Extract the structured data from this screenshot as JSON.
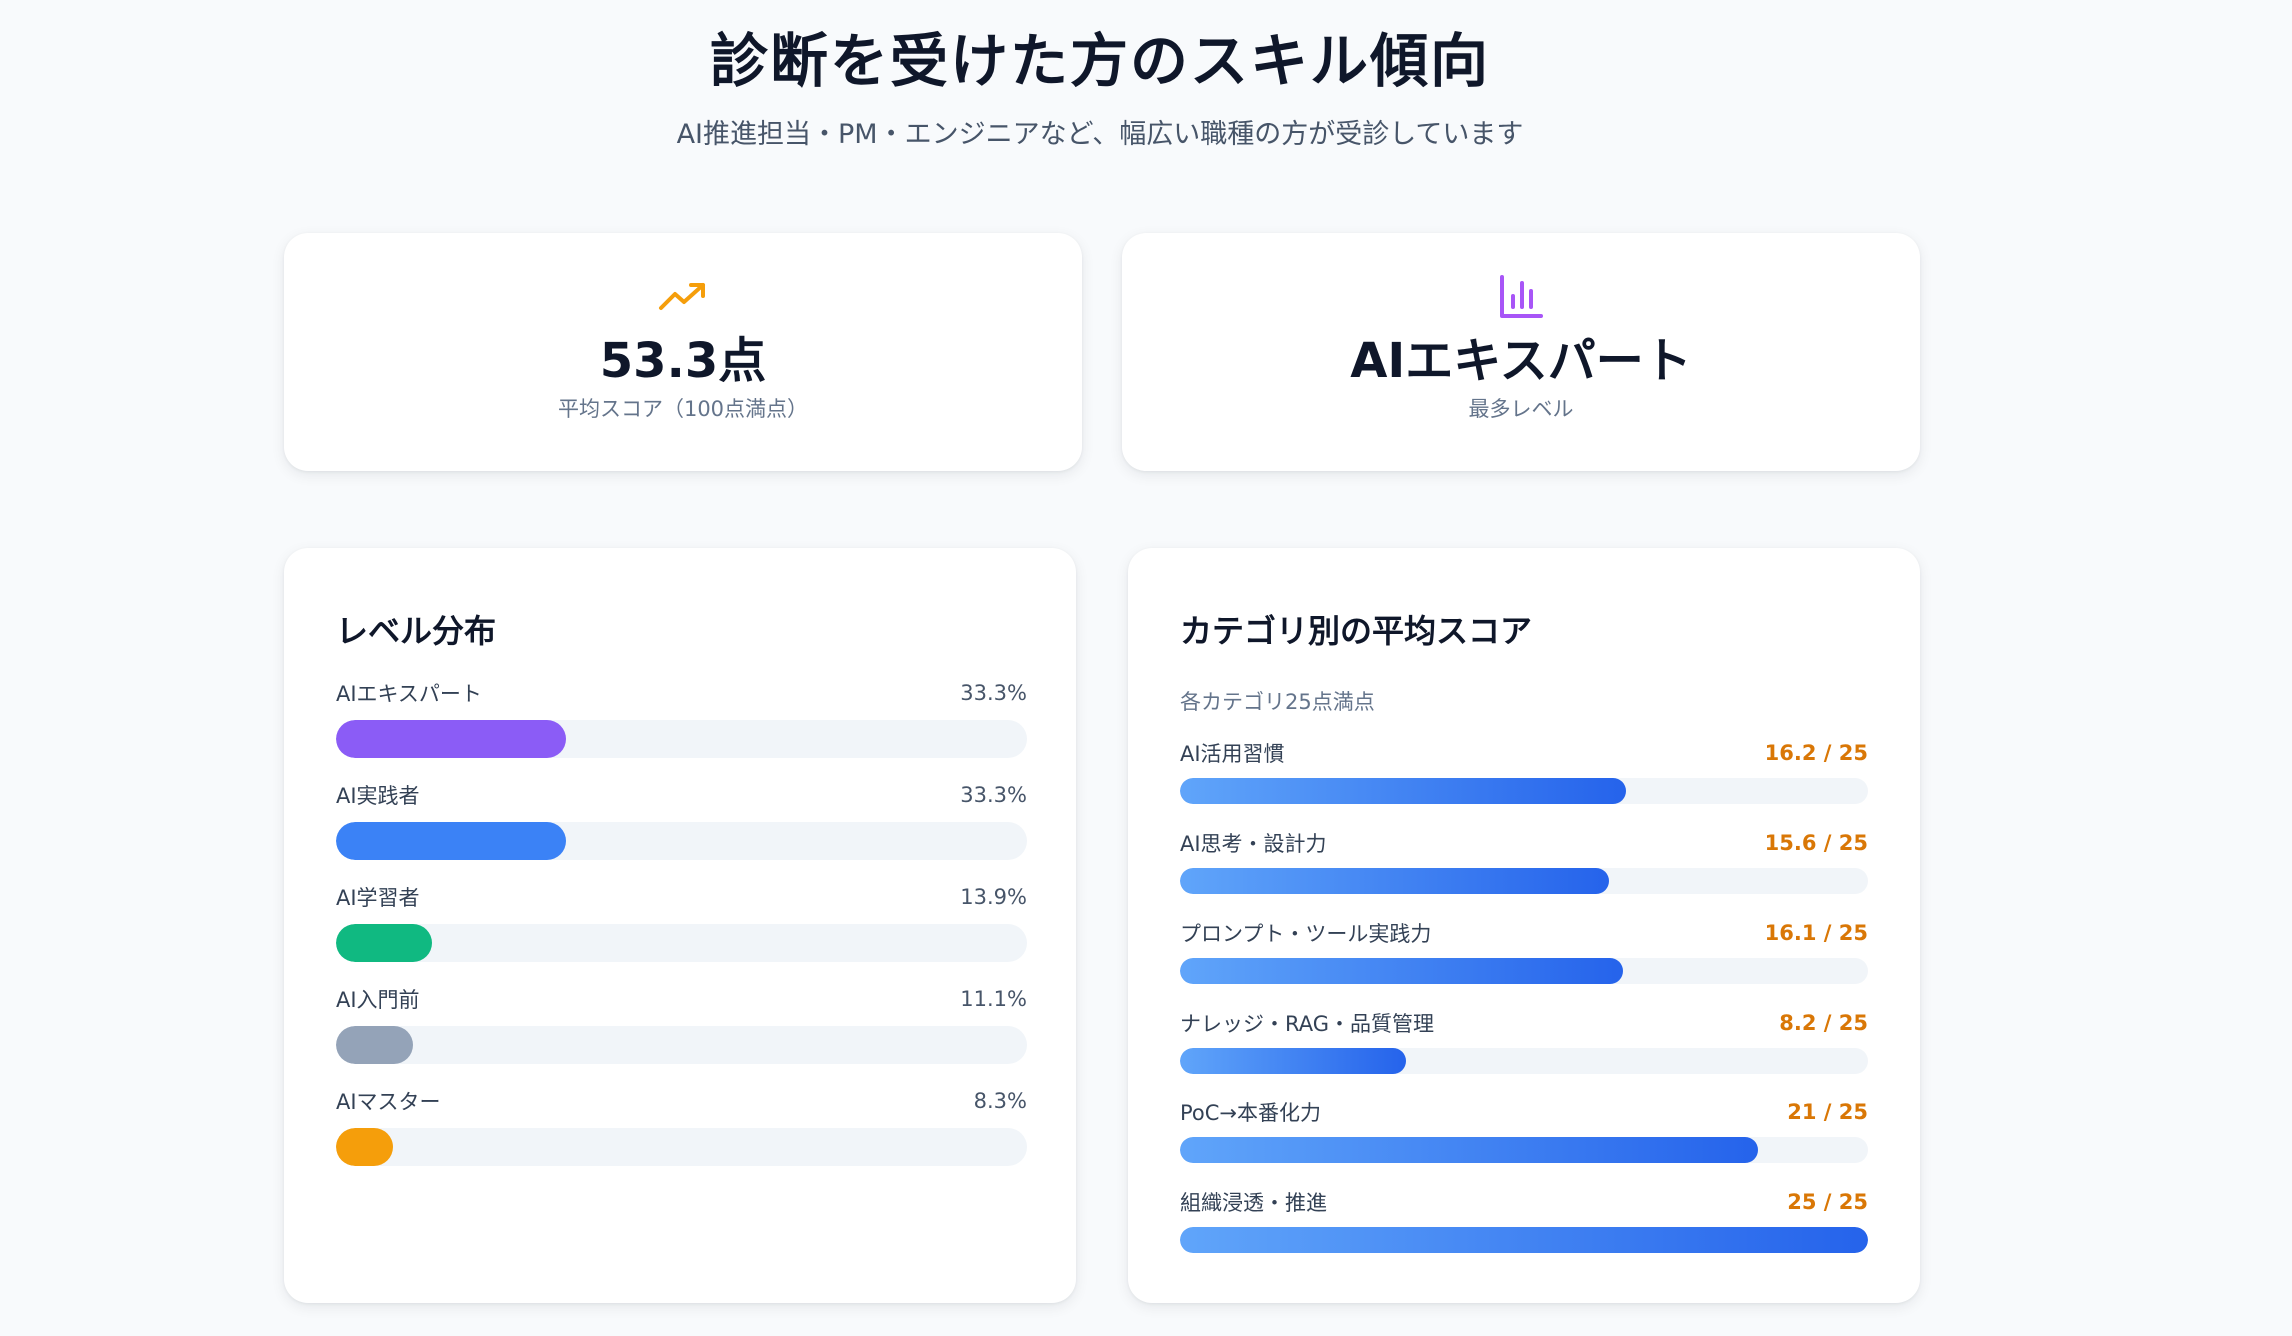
{
  "header": {
    "title": "診断を受けた方のスキル傾向",
    "subtitle": "AI推進担当・PM・エンジニアなど、幅広い職種の方が受診しています"
  },
  "stats": [
    {
      "icon": "trending-up-icon",
      "value": "53.3点",
      "label": "平均スコア（100点満点）",
      "color": "#f59e0b"
    },
    {
      "icon": "bar-chart-icon",
      "value": "AIエキスパート",
      "label": "最多レベル",
      "color": "#a855f7"
    }
  ],
  "level_distribution": {
    "title": "レベル分布",
    "items": [
      {
        "label": "AIエキスパート",
        "value": "33.3%",
        "percent": 33.3,
        "color": "#8b5cf6"
      },
      {
        "label": "AI実践者",
        "value": "33.3%",
        "percent": 33.3,
        "color": "#3b82f6"
      },
      {
        "label": "AI学習者",
        "value": "13.9%",
        "percent": 13.9,
        "color": "#10b981"
      },
      {
        "label": "AI入門前",
        "value": "11.1%",
        "percent": 11.1,
        "color": "#94a3b8"
      },
      {
        "label": "AIマスター",
        "value": "8.3%",
        "percent": 8.3,
        "color": "#f59e0b"
      }
    ]
  },
  "category_scores": {
    "title": "カテゴリ別の平均スコア",
    "note": "各カテゴリ25点満点",
    "max": 25,
    "items": [
      {
        "label": "AI活用習慣",
        "score": 16.2,
        "score_text": "16.2 / 25"
      },
      {
        "label": "AI思考・設計力",
        "score": 15.6,
        "score_text": "15.6 / 25"
      },
      {
        "label": "プロンプト・ツール実践力",
        "score": 16.1,
        "score_text": "16.1 / 25"
      },
      {
        "label": "ナレッジ・RAG・品質管理",
        "score": 8.2,
        "score_text": "8.2 / 25"
      },
      {
        "label": "PoC→本番化力",
        "score": 21,
        "score_text": "21 / 25"
      },
      {
        "label": "組織浸透・推進",
        "score": 25,
        "score_text": "25 / 25"
      }
    ]
  }
}
